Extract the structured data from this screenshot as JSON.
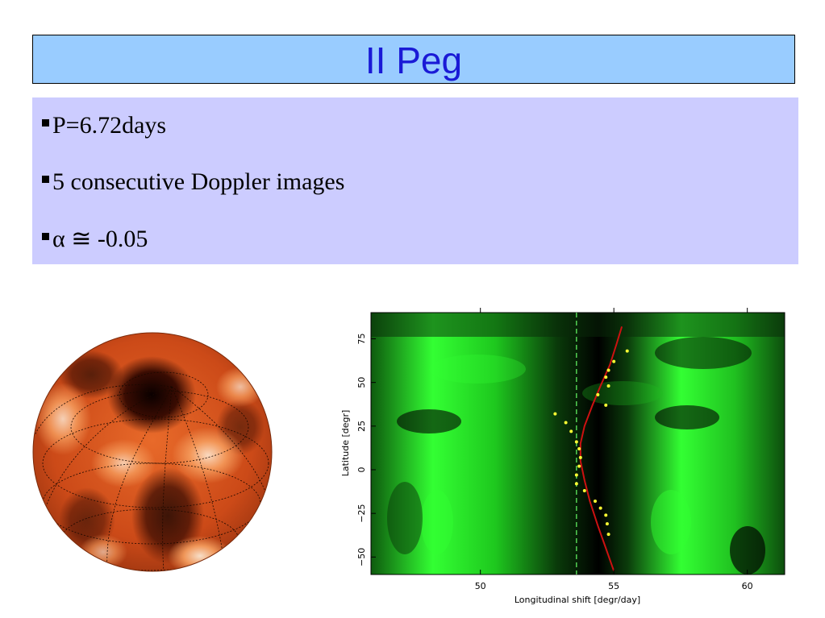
{
  "slide": {
    "title": "II Peg",
    "bullets": [
      "P=6.72days",
      "5 consecutive Doppler images",
      "α ≅ -0.05"
    ]
  },
  "colors": {
    "title_bg": "#99ccff",
    "title_text": "#1a1ad6",
    "bullet_bg": "#ccccff",
    "spot_map_base": "#d2521e",
    "plot_green": "#33ff33",
    "fit_curve": "#cc1111",
    "points": "#ffff33"
  },
  "chart_data": {
    "type": "heatmap",
    "title": "",
    "xlabel": "Longitudinal shift [degr/day]",
    "ylabel": "Latitude [degr]",
    "xlim": [
      45.9,
      61.4
    ],
    "ylim": [
      -60,
      90
    ],
    "x_ticks": [
      50,
      55,
      60
    ],
    "y_ticks": [
      -50,
      -25,
      0,
      25,
      50,
      75
    ],
    "reference_line_x": 53.6,
    "fit_curve": {
      "x": [
        55.0,
        54.7,
        54.4,
        54.1,
        53.9,
        53.75,
        53.75,
        53.9,
        54.2,
        54.5,
        54.85,
        55.1,
        55.3
      ],
      "y": [
        -58,
        -45,
        -32,
        -18,
        -6,
        5,
        15,
        25,
        37,
        48,
        60,
        72,
        82
      ]
    },
    "points": {
      "x": [
        52.8,
        53.2,
        53.4,
        53.6,
        53.7,
        53.75,
        53.7,
        53.6,
        53.6,
        53.9,
        54.3,
        54.5,
        54.7,
        54.75,
        54.8,
        54.7,
        54.4,
        54.8,
        54.7,
        54.8,
        55.0,
        55.5
      ],
      "y": [
        32,
        27,
        22,
        16,
        12,
        7,
        2,
        -3,
        -8,
        -12,
        -18,
        -22,
        -26,
        -31,
        -37,
        37,
        43,
        48,
        53,
        57,
        62,
        68
      ]
    }
  }
}
